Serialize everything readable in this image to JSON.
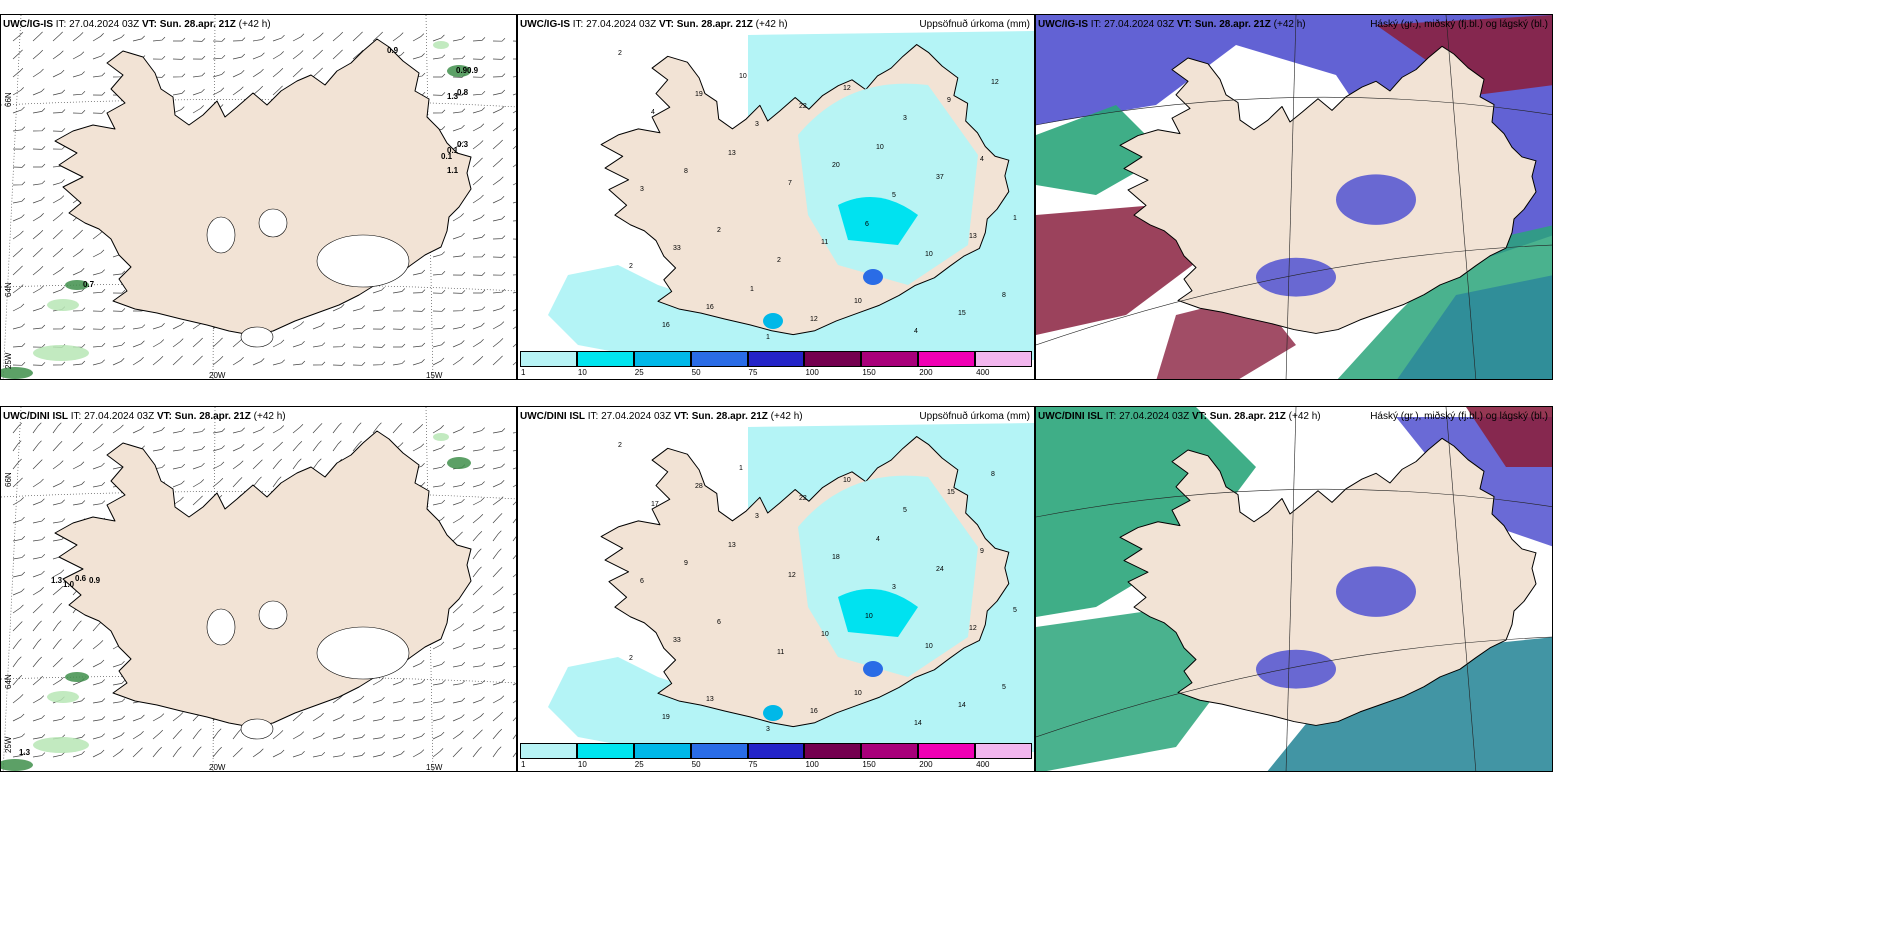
{
  "panels": {
    "r1c1": {
      "model": "UWC/IG-IS",
      "it_label": "IT: 27.04.2024 03Z",
      "vt_label": "VT: Sun. 28.apr. 21Z",
      "lead": "(+42 h)",
      "right_title": ""
    },
    "r1c2": {
      "model": "UWC/IG-IS",
      "it_label": "IT: 27.04.2024 03Z",
      "vt_label": "VT: Sun. 28.apr. 21Z",
      "lead": "(+42 h)",
      "right_title": "Uppsöfnuð úrkoma (mm)"
    },
    "r1c3": {
      "model": "UWC/IG-IS",
      "it_label": "IT: 27.04.2024 03Z",
      "vt_label": "VT: Sun. 28.apr. 21Z",
      "lead": "(+42 h)",
      "right_title": "Háský (gr.), miðský (fj.bl.) og lágský (bl.)"
    },
    "r2c1": {
      "model": "UWC/DINI ISL",
      "it_label": "IT: 27.04.2024 03Z",
      "vt_label": "VT: Sun. 28.apr. 21Z",
      "lead": "(+42 h)",
      "right_title": ""
    },
    "r2c2": {
      "model": "UWC/DINI ISL",
      "it_label": "IT: 27.04.2024 03Z",
      "vt_label": "VT: Sun. 28.apr. 21Z",
      "lead": "(+42 h)",
      "right_title": "Uppsöfnuð úrkoma (mm)"
    },
    "r2c3": {
      "model": "UWC/DINI ISL",
      "it_label": "IT: 27.04.2024 03Z",
      "vt_label": "VT: Sun. 28.apr. 21Z",
      "lead": "(+42 h)",
      "right_title": "Háský (gr.), miðský (fj.bl.) og lágský (bl.)"
    }
  },
  "grid_labels": {
    "lat66": "66N",
    "lat64": "64N",
    "lon25": "25W",
    "lon20": "20W",
    "lon15": "15W"
  },
  "colorbar": {
    "ticks": [
      "1",
      "10",
      "25",
      "50",
      "75",
      "100",
      "150",
      "200",
      "400"
    ],
    "colors": [
      "#b7f3f5",
      "#00e5ef",
      "#00b8e8",
      "#2a6ce6",
      "#2424c8",
      "#74004f",
      "#a8007a",
      "#f000b4",
      "#f2b6ee"
    ]
  },
  "colors": {
    "land": "#f2e3d5",
    "precip_light": "#b4f4f6",
    "precip_mid": "#00e2f0",
    "high_cloud": "#2aa57a",
    "mid_cloud": "#5a5ad2",
    "low_cloud": "#8a2140"
  },
  "precip_values": {
    "r1": [
      "2",
      "3",
      "5",
      "2",
      "1",
      "3",
      "3",
      "2",
      "4",
      "4",
      "7",
      "10",
      "16",
      "22",
      "37",
      "33",
      "12",
      "9",
      "8",
      "11",
      "15",
      "19",
      "20",
      "13",
      "16",
      "12",
      "4",
      "2",
      "10",
      "12",
      "13",
      "6",
      "8",
      "10",
      "10",
      "1",
      "1"
    ],
    "r2": [
      "2",
      "3",
      "3",
      "2",
      "3",
      "5",
      "6",
      "11",
      "14",
      "17",
      "12",
      "10",
      "19",
      "22",
      "24",
      "33",
      "16",
      "15",
      "9",
      "10",
      "14",
      "28",
      "18",
      "12",
      "13",
      "10",
      "9",
      "6",
      "10",
      "8",
      "13",
      "10",
      "5",
      "1",
      "4",
      "5"
    ]
  },
  "wind_labels": {
    "r1": [
      "0.9",
      "0.9",
      "0.9",
      "1.3",
      "0.8",
      "0.3",
      "1.1",
      "0.1",
      "0.1",
      "0.7"
    ],
    "r2": [
      "1.3",
      "0.6",
      "0.9",
      "1.0",
      "1.3"
    ]
  }
}
